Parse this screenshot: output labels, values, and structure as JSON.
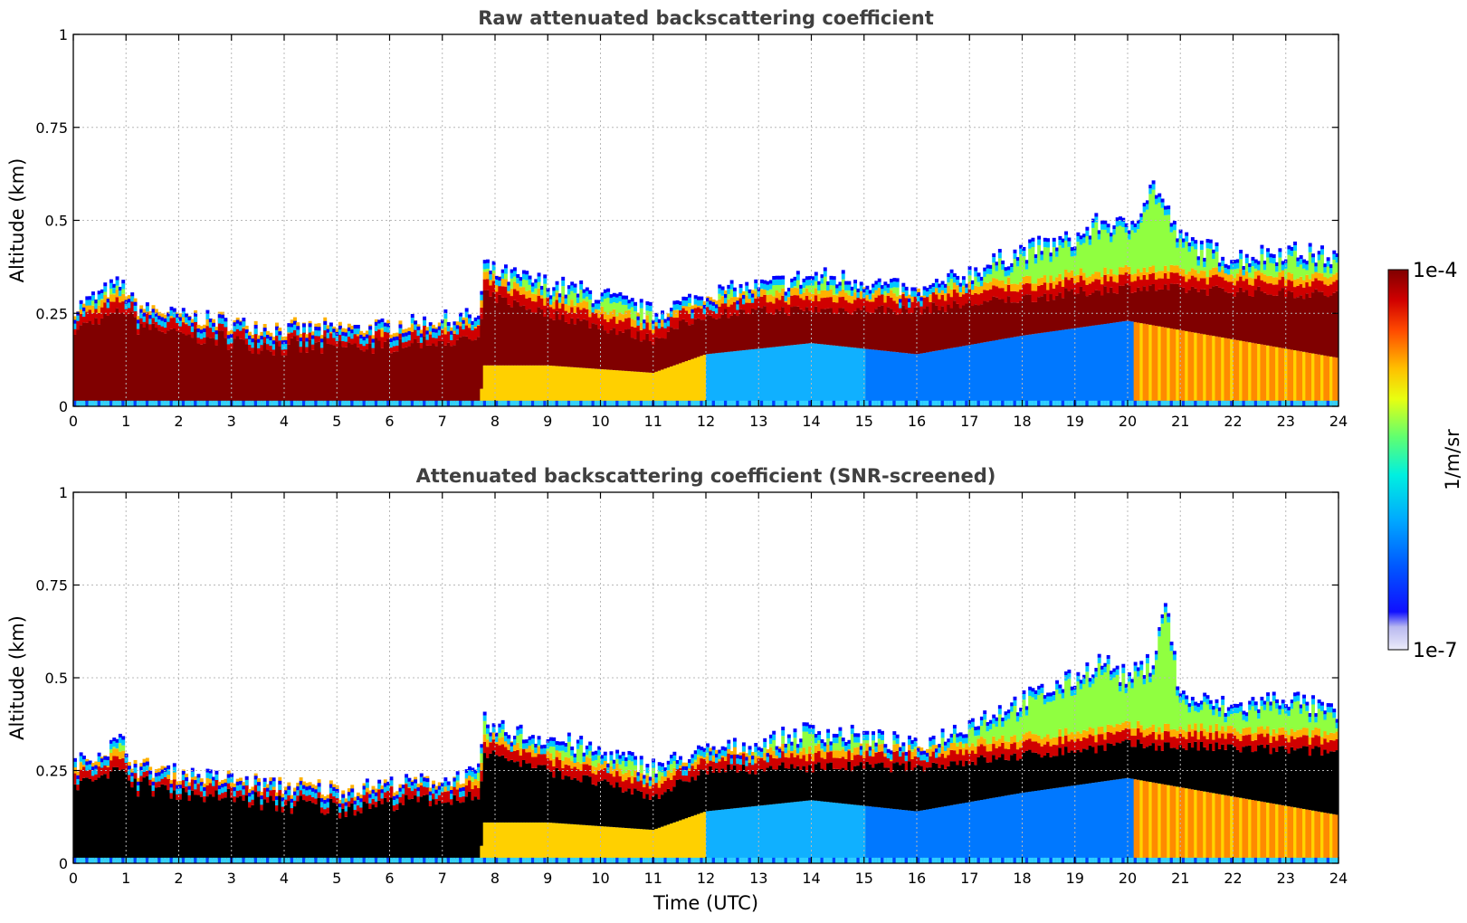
{
  "chart_data": [
    {
      "type": "heatmap",
      "title": "Raw attenuated backscattering coefficient",
      "xlabel": "",
      "ylabel": "Altitude (km)",
      "xlim": [
        0,
        24
      ],
      "ylim": [
        0,
        1
      ],
      "x_ticks": [
        "0",
        "1",
        "2",
        "3",
        "4",
        "5",
        "6",
        "7",
        "8",
        "9",
        "10",
        "11",
        "12",
        "13",
        "14",
        "15",
        "16",
        "17",
        "18",
        "19",
        "20",
        "21",
        "22",
        "23",
        "24"
      ],
      "y_ticks": [
        "0",
        "0.25",
        "0.5",
        "0.75",
        "1"
      ],
      "y_tick_values": [
        0,
        0.25,
        0.5,
        0.75,
        1
      ],
      "grid": true,
      "layer_top_km": {
        "time_utc": [
          0,
          0.5,
          0.9,
          1.2,
          2,
          3,
          4,
          5,
          6,
          7,
          7.7,
          7.8,
          8,
          9,
          10,
          11,
          12,
          13,
          14,
          15,
          15.5,
          16,
          17,
          18,
          19,
          19.5,
          20,
          20.5,
          21,
          22,
          23,
          24
        ],
        "altitude_km": [
          0.26,
          0.3,
          0.33,
          0.26,
          0.24,
          0.22,
          0.2,
          0.2,
          0.21,
          0.23,
          0.24,
          0.38,
          0.36,
          0.33,
          0.3,
          0.25,
          0.3,
          0.32,
          0.35,
          0.34,
          0.32,
          0.3,
          0.36,
          0.42,
          0.45,
          0.5,
          0.48,
          0.6,
          0.45,
          0.4,
          0.42,
          0.4
        ]
      },
      "saturated_core_km": {
        "time_utc": [
          0,
          1,
          2,
          4,
          6,
          7.7,
          7.8,
          9,
          11,
          12,
          14,
          16,
          18,
          20,
          24
        ],
        "bottom": [
          0.02,
          0.02,
          0.02,
          0.01,
          0.01,
          0.01,
          0.12,
          0.12,
          0.1,
          0.15,
          0.18,
          0.15,
          0.2,
          0.24,
          0.14
        ],
        "top": [
          0.21,
          0.26,
          0.2,
          0.18,
          0.17,
          0.18,
          0.3,
          0.25,
          0.18,
          0.25,
          0.26,
          0.26,
          0.29,
          0.32,
          0.3
        ]
      }
    },
    {
      "type": "heatmap",
      "title": "Attenuated backscattering coefficient (SNR-screened)",
      "xlabel": "Time (UTC)",
      "ylabel": "Altitude (km)",
      "xlim": [
        0,
        24
      ],
      "ylim": [
        0,
        1
      ],
      "x_ticks": [
        "0",
        "1",
        "2",
        "3",
        "4",
        "5",
        "6",
        "7",
        "8",
        "9",
        "10",
        "11",
        "12",
        "13",
        "14",
        "15",
        "16",
        "17",
        "18",
        "19",
        "20",
        "21",
        "22",
        "23",
        "24"
      ],
      "y_ticks": [
        "0",
        "0.25",
        "0.5",
        "0.75",
        "1"
      ],
      "y_tick_values": [
        0,
        0.25,
        0.5,
        0.75,
        1
      ],
      "grid": true,
      "masked_core_color": "#000000",
      "layer_top_km": {
        "time_utc": [
          0,
          0.5,
          0.9,
          1.2,
          2,
          3,
          4,
          5,
          6,
          7,
          7.7,
          7.8,
          8,
          9,
          10,
          11,
          12,
          13,
          14,
          15,
          15.5,
          16,
          17,
          18,
          19,
          19.5,
          20,
          20.5,
          20.7,
          21,
          22,
          23,
          24
        ],
        "altitude_km": [
          0.26,
          0.3,
          0.33,
          0.25,
          0.24,
          0.22,
          0.2,
          0.19,
          0.21,
          0.22,
          0.24,
          0.38,
          0.36,
          0.34,
          0.3,
          0.26,
          0.3,
          0.32,
          0.36,
          0.34,
          0.33,
          0.31,
          0.38,
          0.44,
          0.5,
          0.55,
          0.5,
          0.55,
          0.72,
          0.45,
          0.42,
          0.45,
          0.4
        ]
      }
    }
  ],
  "colorbar": {
    "label": "1/m/sr",
    "max_label": "1e-4",
    "min_label": "1e-7",
    "scale": "log",
    "range": [
      1e-07,
      0.0001
    ],
    "colormap": [
      "#e8e8f8",
      "#c8c8f0",
      "#0000ff",
      "#0060ff",
      "#00b0ff",
      "#00ffd0",
      "#80ff40",
      "#ffff00",
      "#ffb000",
      "#ff4000",
      "#c00000",
      "#800000"
    ]
  }
}
